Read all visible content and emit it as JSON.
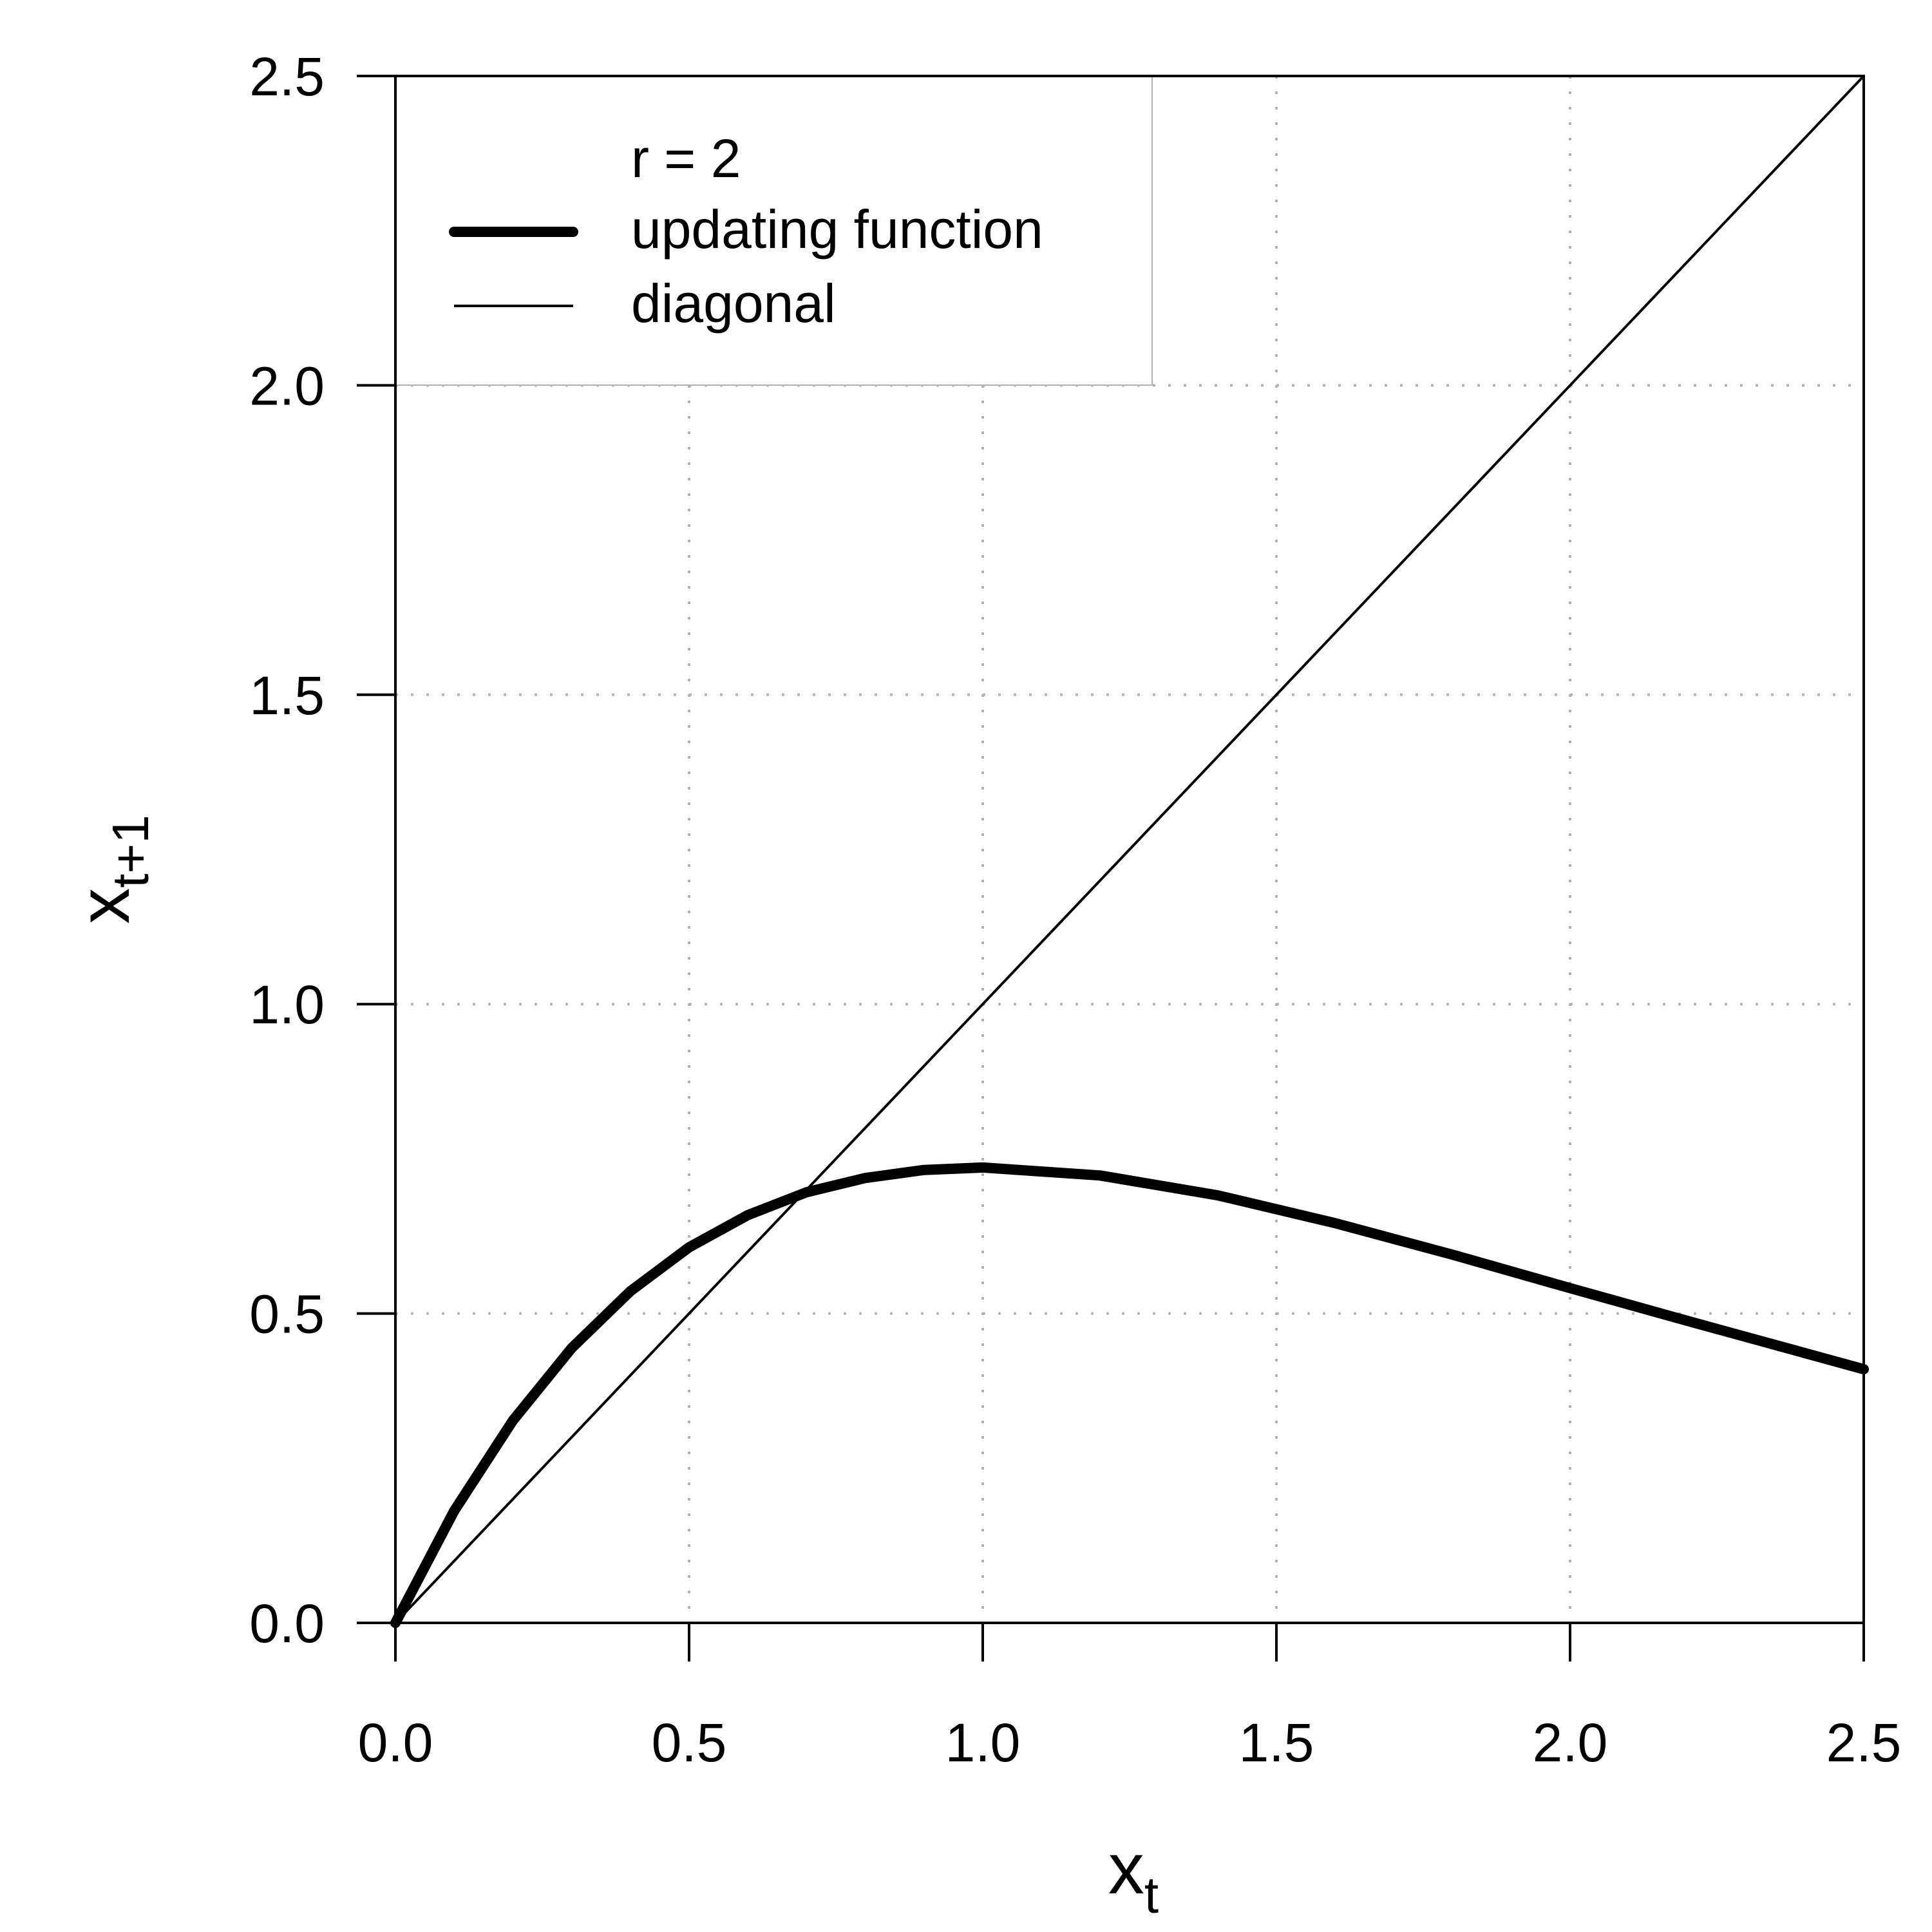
{
  "chart_data": {
    "type": "line",
    "xlabel": "x",
    "xlabel_sub": "t",
    "ylabel": "x",
    "ylabel_sub": "t+1",
    "xlim": [
      0,
      2.5
    ],
    "ylim": [
      0,
      2.5
    ],
    "x_ticks": [
      "0.0",
      "0.5",
      "1.0",
      "1.5",
      "2.0",
      "2.5"
    ],
    "y_ticks": [
      "0.0",
      "0.5",
      "1.0",
      "1.5",
      "2.0",
      "2.5"
    ],
    "grid": true,
    "legend": {
      "position": "top-left",
      "title": "r = 2",
      "entries": [
        "updating function",
        "diagonal"
      ]
    },
    "series": [
      {
        "name": "updating function",
        "style": "thick",
        "x": [
          0.0,
          0.1,
          0.2,
          0.3,
          0.4,
          0.5,
          0.6,
          0.7,
          0.8,
          0.9,
          1.0,
          1.2,
          1.4,
          1.6,
          1.8,
          2.0,
          2.2,
          2.4,
          2.5
        ],
        "y": [
          0.0,
          0.181,
          0.327,
          0.444,
          0.536,
          0.607,
          0.659,
          0.696,
          0.719,
          0.732,
          0.736,
          0.723,
          0.691,
          0.646,
          0.595,
          0.541,
          0.488,
          0.436,
          0.41
        ]
      },
      {
        "name": "diagonal",
        "style": "thin",
        "x": [
          0.0,
          2.5
        ],
        "y": [
          0.0,
          2.5
        ]
      }
    ]
  }
}
